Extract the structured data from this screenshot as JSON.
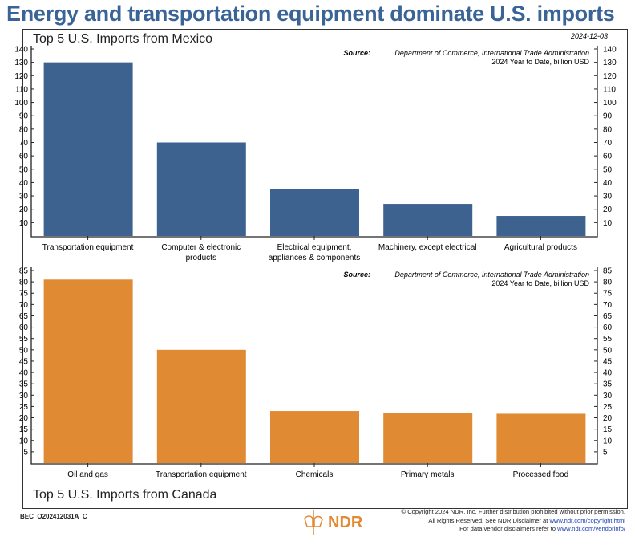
{
  "title": "Energy and transportation equipment dominate U.S. imports",
  "date": "2024-12-03",
  "chart_data": [
    {
      "type": "bar",
      "title": "Top 5 U.S. Imports from Mexico",
      "source_label": "Source:",
      "source": "Department of Commerce, International Trade Administration",
      "subtitle": "2024 Year to Date, billion USD",
      "color": "#3e628f",
      "categories": [
        [
          "Transportation equipment"
        ],
        [
          "Computer & electronic",
          "products"
        ],
        [
          "Electrical equipment,",
          "appliances & components"
        ],
        [
          "Machinery, except electrical"
        ],
        [
          "Agricultural products"
        ]
      ],
      "values": [
        130,
        70,
        35,
        24,
        15
      ],
      "ylim": [
        0,
        140
      ],
      "yticks": [
        10,
        20,
        30,
        40,
        50,
        60,
        70,
        80,
        90,
        100,
        110,
        120,
        130,
        140
      ]
    },
    {
      "type": "bar",
      "title": "Top 5 U.S. Imports from Canada",
      "source_label": "Source:",
      "source": "Department of Commerce, International Trade Administration",
      "subtitle": "2024 Year to Date, billion USD",
      "color": "#e08a33",
      "categories": [
        [
          "Oil and gas"
        ],
        [
          "Transportation equipment"
        ],
        [
          "Chemicals"
        ],
        [
          "Primary metals"
        ],
        [
          "Processed food"
        ]
      ],
      "values": [
        81,
        50,
        23,
        22,
        21.8
      ],
      "ylim": [
        0,
        85
      ],
      "yticks": [
        5,
        10,
        15,
        20,
        25,
        30,
        35,
        40,
        45,
        50,
        55,
        60,
        65,
        70,
        75,
        80,
        85
      ]
    }
  ],
  "footer": {
    "code": "BEC_O202412031A_C",
    "logo": "NDR",
    "line1": "© Copyright 2024 NDR, Inc. Further distribution prohibited without prior permission.",
    "line2": "All Rights Reserved. See NDR Disclaimer at ",
    "link1": "www.ndr.com/copyright.html",
    "line3": "For data vendor disclaimers refer to ",
    "link2": "www.ndr.com/vendorinfo/"
  }
}
